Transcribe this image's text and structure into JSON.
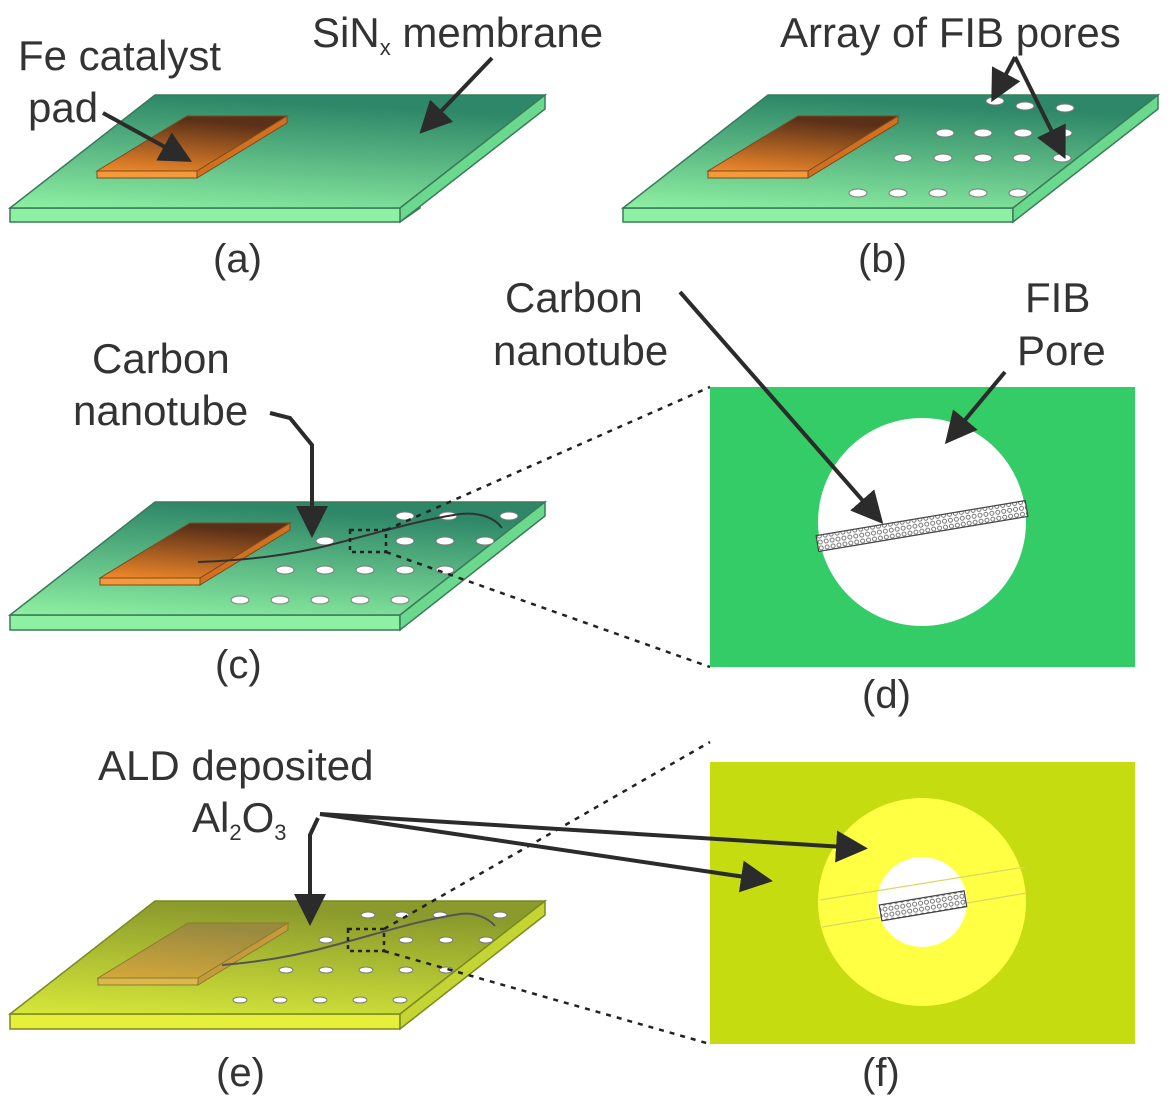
{
  "panels": {
    "a": {
      "caption": "(a)",
      "label_catalyst_line1": "Fe catalyst",
      "label_catalyst_line2": "pad",
      "label_membrane_prefix": "SiN",
      "label_membrane_sub": "x",
      "label_membrane_suffix": " membrane"
    },
    "b": {
      "caption": "(b)",
      "label_pores": "Array of FIB pores"
    },
    "c": {
      "caption": "(c)",
      "label_cnt_line1": "Carbon",
      "label_cnt_line2": "nanotube"
    },
    "d": {
      "caption": "(d)",
      "label_cnt_line1": "Carbon",
      "label_cnt_line2": "nanotube",
      "label_pore_line1": "FIB",
      "label_pore_line2": "Pore"
    },
    "e": {
      "caption": "(e)",
      "label_ald_line1": "ALD deposited",
      "label_ald_al": "Al",
      "label_ald_sub2": "2",
      "label_ald_o": "O",
      "label_ald_sub3": "3"
    },
    "f": {
      "caption": "(f)"
    }
  },
  "colors": {
    "membrane_top": "#5fd39a",
    "membrane_dark": "#2f8a6a",
    "membrane_side": "#8ef0a2",
    "catalyst_pad": "#e87a22",
    "catalyst_dark": "#6a3a1a",
    "zoom_green": "#33cc66",
    "ald_top": "#c8d83a",
    "ald_side": "#e6f03a",
    "zoom_ald": "#c4dc10",
    "ald_ring": "#ffff44"
  }
}
